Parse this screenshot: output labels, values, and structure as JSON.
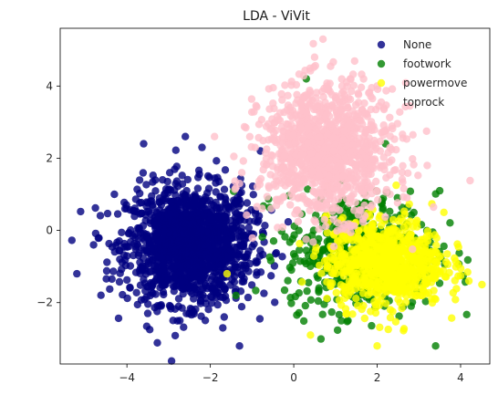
{
  "chart_data": {
    "type": "scatter",
    "title": "LDA - ViVit",
    "xlabel": "",
    "ylabel": "",
    "xlim": [
      -5.6,
      4.7
    ],
    "ylim": [
      -3.7,
      5.6
    ],
    "xticks": [
      -4,
      -2,
      0,
      2,
      4
    ],
    "yticks": [
      -2,
      0,
      2,
      4
    ],
    "grid": false,
    "legend": "top-right",
    "series": [
      {
        "name": "None",
        "color": "#000080",
        "opacity": 0.8,
        "cluster": {
          "center": [
            -2.5,
            -0.4
          ],
          "spread": [
            0.75,
            0.8
          ],
          "count": 1500
        },
        "sample_points": [
          [
            -5.2,
            -1.2
          ],
          [
            -4.8,
            -0.4
          ],
          [
            -3.6,
            2.4
          ],
          [
            -2.6,
            2.6
          ],
          [
            -2.2,
            2.3
          ],
          [
            -1.3,
            -3.2
          ],
          [
            -0.8,
            2.2
          ],
          [
            -4.3,
            1.0
          ],
          [
            -3.5,
            -2.3
          ],
          [
            -1.7,
            -2.7
          ]
        ]
      },
      {
        "name": "footwork",
        "color": "#008000",
        "opacity": 0.8,
        "cluster": {
          "center": [
            1.6,
            -0.6
          ],
          "spread": [
            0.9,
            0.8
          ],
          "count": 500
        },
        "sample_points": [
          [
            0.3,
            4.2
          ],
          [
            2.2,
            2.4
          ],
          [
            3.5,
            1.1
          ],
          [
            3.4,
            -3.2
          ],
          [
            1.3,
            -2.5
          ],
          [
            0.8,
            -1.9
          ]
        ]
      },
      {
        "name": "powermove",
        "color": "#ffff00",
        "opacity": 0.8,
        "cluster": {
          "center": [
            2.2,
            -0.9
          ],
          "spread": [
            0.7,
            0.6
          ],
          "count": 800
        },
        "sample_points": [
          [
            -1.6,
            -1.2
          ],
          [
            4.2,
            -1.4
          ],
          [
            2.0,
            -3.2
          ],
          [
            0.4,
            -2.9
          ],
          [
            3.6,
            0.5
          ]
        ]
      },
      {
        "name": "toprock",
        "color": "#ffc0cb",
        "opacity": 0.8,
        "cluster": {
          "center": [
            0.8,
            2.2
          ],
          "spread": [
            0.8,
            0.9
          ],
          "count": 1100
        },
        "sample_points": [
          [
            0.7,
            5.3
          ],
          [
            -1.9,
            2.6
          ],
          [
            2.0,
            4.0
          ],
          [
            0.5,
            4.8
          ],
          [
            -1.3,
            1.3
          ],
          [
            3.2,
            1.8
          ]
        ]
      }
    ]
  }
}
